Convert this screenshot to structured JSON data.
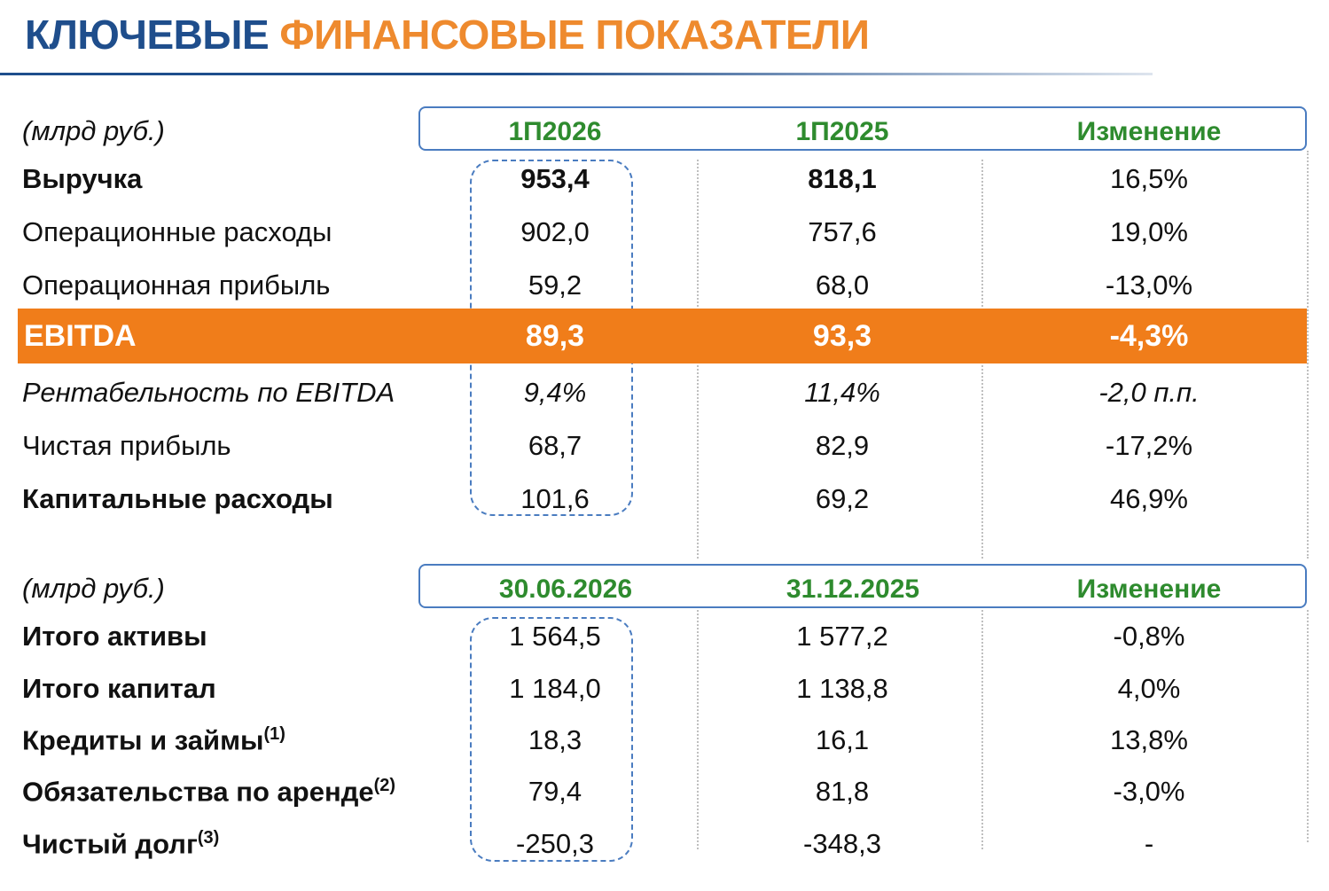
{
  "title": {
    "part1": "КЛЮЧЕВЫЕ",
    "part2": "ФИНАНСОВЫЕ ПОКАЗАТЕЛИ"
  },
  "colors": {
    "title_blue": "#1f4e8c",
    "title_orange": "#ee8a2e",
    "header_green": "#2e8b2e",
    "ebitda_orange": "#f07d1a",
    "box_blue": "#4a7cc0"
  },
  "table1": {
    "unit": "(млрд руб.)",
    "headers": [
      "1П2026",
      "1П2025",
      "Изменение"
    ],
    "rows": [
      {
        "label": "Выручка",
        "values": [
          "953,4",
          "818,1",
          "16,5%"
        ]
      },
      {
        "label": "Операционные расходы",
        "values": [
          "902,0",
          "757,6",
          "19,0%"
        ]
      },
      {
        "label": "Операционная прибыль",
        "values": [
          "59,2",
          "68,0",
          "-13,0%"
        ]
      },
      {
        "label": "EBITDA",
        "values": [
          "89,3",
          "93,3",
          "-4,3%"
        ]
      },
      {
        "label": "Рентабельность по EBITDA",
        "values": [
          "9,4%",
          "11,4%",
          "-2,0 п.п."
        ]
      },
      {
        "label": "Чистая прибыль",
        "values": [
          "68,7",
          "82,9",
          "-17,2%"
        ]
      },
      {
        "label": "Капитальные расходы",
        "values": [
          "101,6",
          "69,2",
          "46,9%"
        ]
      }
    ]
  },
  "table2": {
    "unit": "(млрд руб.)",
    "headers": [
      "30.06.2026",
      "31.12.2025",
      "Изменение"
    ],
    "rows": [
      {
        "label": "Итого активы",
        "note": "",
        "values": [
          "1 564,5",
          "1 577,2",
          "-0,8%"
        ]
      },
      {
        "label": "Итого капитал",
        "note": "",
        "values": [
          "1 184,0",
          "1 138,8",
          "4,0%"
        ]
      },
      {
        "label": "Кредиты и займы",
        "note": "(1)",
        "values": [
          "18,3",
          "16,1",
          "13,8%"
        ]
      },
      {
        "label": "Обязательства по аренде",
        "note": "(2)",
        "values": [
          "79,4",
          "81,8",
          "-3,0%"
        ]
      },
      {
        "label": "Чистый долг",
        "note": "(3)",
        "values": [
          "-250,3",
          "-348,3",
          "-"
        ]
      }
    ]
  }
}
